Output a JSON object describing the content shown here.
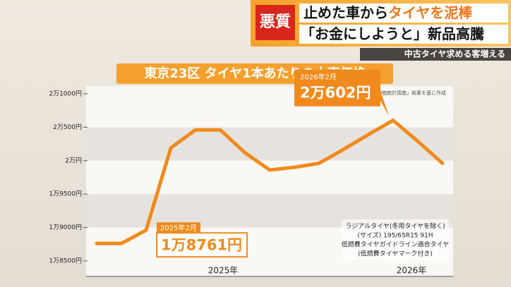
{
  "header": {
    "badge": "悪質",
    "headline_1a": "止めた車から",
    "headline_1b": "タイヤを泥棒",
    "headline_2a": "「お金にしようと」",
    "headline_2b": "新品高騰",
    "subtitle": "中古タイヤ求める客増える"
  },
  "chart_data": {
    "type": "line",
    "title": "東京23区 タイヤ1本あたりの小売価格",
    "source": "総務省「小売物価統計調査」結果を基に作成",
    "categories": [
      null,
      null,
      null,
      null,
      null,
      null,
      null,
      null,
      null,
      null,
      null,
      null,
      null,
      null,
      null
    ],
    "year_labels": [
      "2025年",
      "2026年"
    ],
    "series": [
      {
        "name": null,
        "color": "#f08a1c",
        "values": [
          18761,
          18761,
          18960,
          20190,
          20460,
          20460,
          20120,
          19860,
          19900,
          19960,
          20170,
          20390,
          20602,
          20290,
          19960
        ],
        "date_labels": [
          "2025年2月",
          null,
          null,
          null,
          null,
          null,
          null,
          null,
          null,
          null,
          null,
          null,
          "2026年2月",
          null,
          null
        ],
        "value_labels": [
          "1万8761円",
          null,
          null,
          null,
          null,
          null,
          null,
          null,
          null,
          null,
          null,
          null,
          "2万602円",
          null,
          null
        ]
      }
    ],
    "ylim": [
      18500,
      21000
    ],
    "yticks": [
      {
        "value": 18500,
        "label": "1万8500円"
      },
      {
        "value": 19000,
        "label": "1万9000円"
      },
      {
        "value": 19500,
        "label": "1万9500円"
      },
      {
        "value": 20000,
        "label": "2万円"
      },
      {
        "value": 20500,
        "label": "2万500円"
      },
      {
        "value": 21000,
        "label": "2万1000円"
      }
    ],
    "grid": true,
    "notes": [
      "ラジアルタイヤ(冬用タイヤを除く)",
      "(サイズ) 195/65R15 91H",
      "低燃費タイヤガイドライン適合タイヤ",
      "(低燃費タイヤマーク付き)"
    ]
  }
}
